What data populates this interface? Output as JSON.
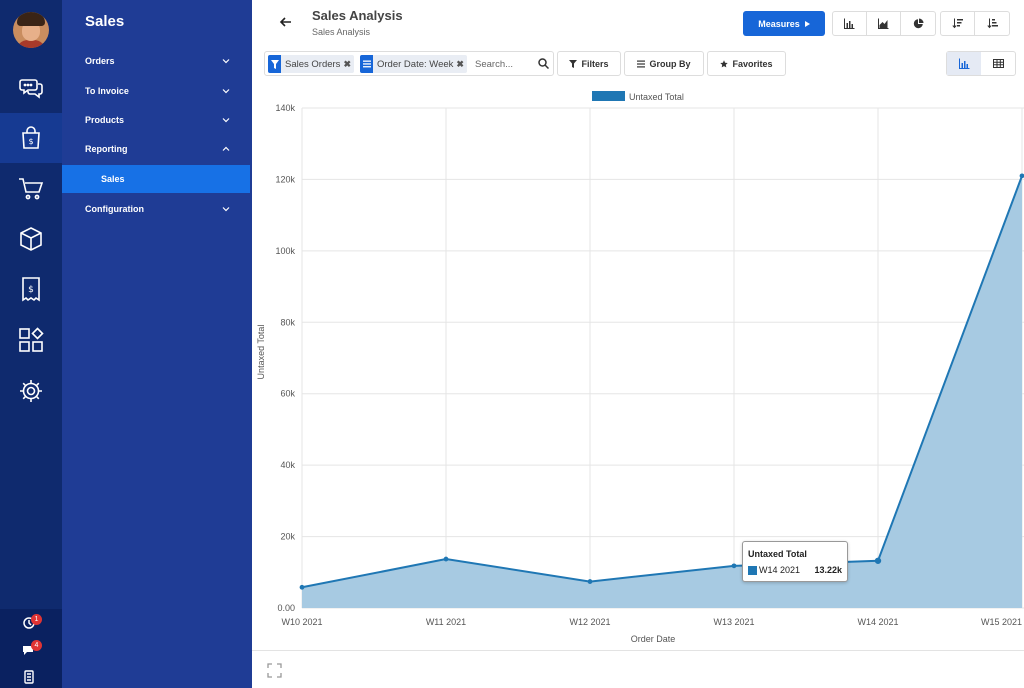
{
  "app": {
    "title": "Sales"
  },
  "sidebar_nav": [
    {
      "icon": "chat-icon"
    },
    {
      "icon": "shopping-bag-icon"
    },
    {
      "icon": "cart-icon"
    },
    {
      "icon": "box-icon"
    },
    {
      "icon": "receipt-icon"
    },
    {
      "icon": "apps-icon"
    },
    {
      "icon": "settings-icon"
    }
  ],
  "rail_bottom": {
    "activity_count": "1",
    "messages_count": "4"
  },
  "menu": {
    "items": [
      {
        "label": "Orders",
        "expanded": false
      },
      {
        "label": "To Invoice",
        "expanded": false
      },
      {
        "label": "Products",
        "expanded": false
      },
      {
        "label": "Reporting",
        "expanded": true
      },
      {
        "label": "Sales",
        "active": true
      },
      {
        "label": "Configuration",
        "expanded": false
      }
    ]
  },
  "header": {
    "title": "Sales Analysis",
    "breadcrumb": "Sales Analysis",
    "measures_label": "Measures"
  },
  "search": {
    "facets": [
      {
        "icon": "filter-icon",
        "value": "Sales Orders"
      },
      {
        "icon": "group-icon",
        "value": "Order Date: Week"
      }
    ],
    "placeholder": "Search..."
  },
  "toolbar": {
    "filters_label": "Filters",
    "group_by_label": "Group By",
    "favorites_label": "Favorites"
  },
  "tooltip": {
    "title": "Untaxed Total",
    "label": "W14 2021",
    "value": "13.22k"
  },
  "colors": {
    "accent": "#1766d8",
    "series": "#1f77b4",
    "fill": "#a7cae2"
  },
  "chart_data": {
    "type": "area",
    "categories": [
      "W10 2021",
      "W11 2021",
      "W12 2021",
      "W13 2021",
      "W14 2021",
      "W15 2021"
    ],
    "series": [
      {
        "name": "Untaxed Total",
        "values": [
          5800,
          13700,
          7400,
          11800,
          13220,
          121000
        ]
      }
    ],
    "xlabel": "Order Date",
    "ylabel": "Untaxed Total",
    "ylim": [
      0,
      140000
    ],
    "yticks": [
      "0.00",
      "20k",
      "40k",
      "60k",
      "80k",
      "100k",
      "120k",
      "140k"
    ],
    "legend": "top-center",
    "grid": true
  }
}
